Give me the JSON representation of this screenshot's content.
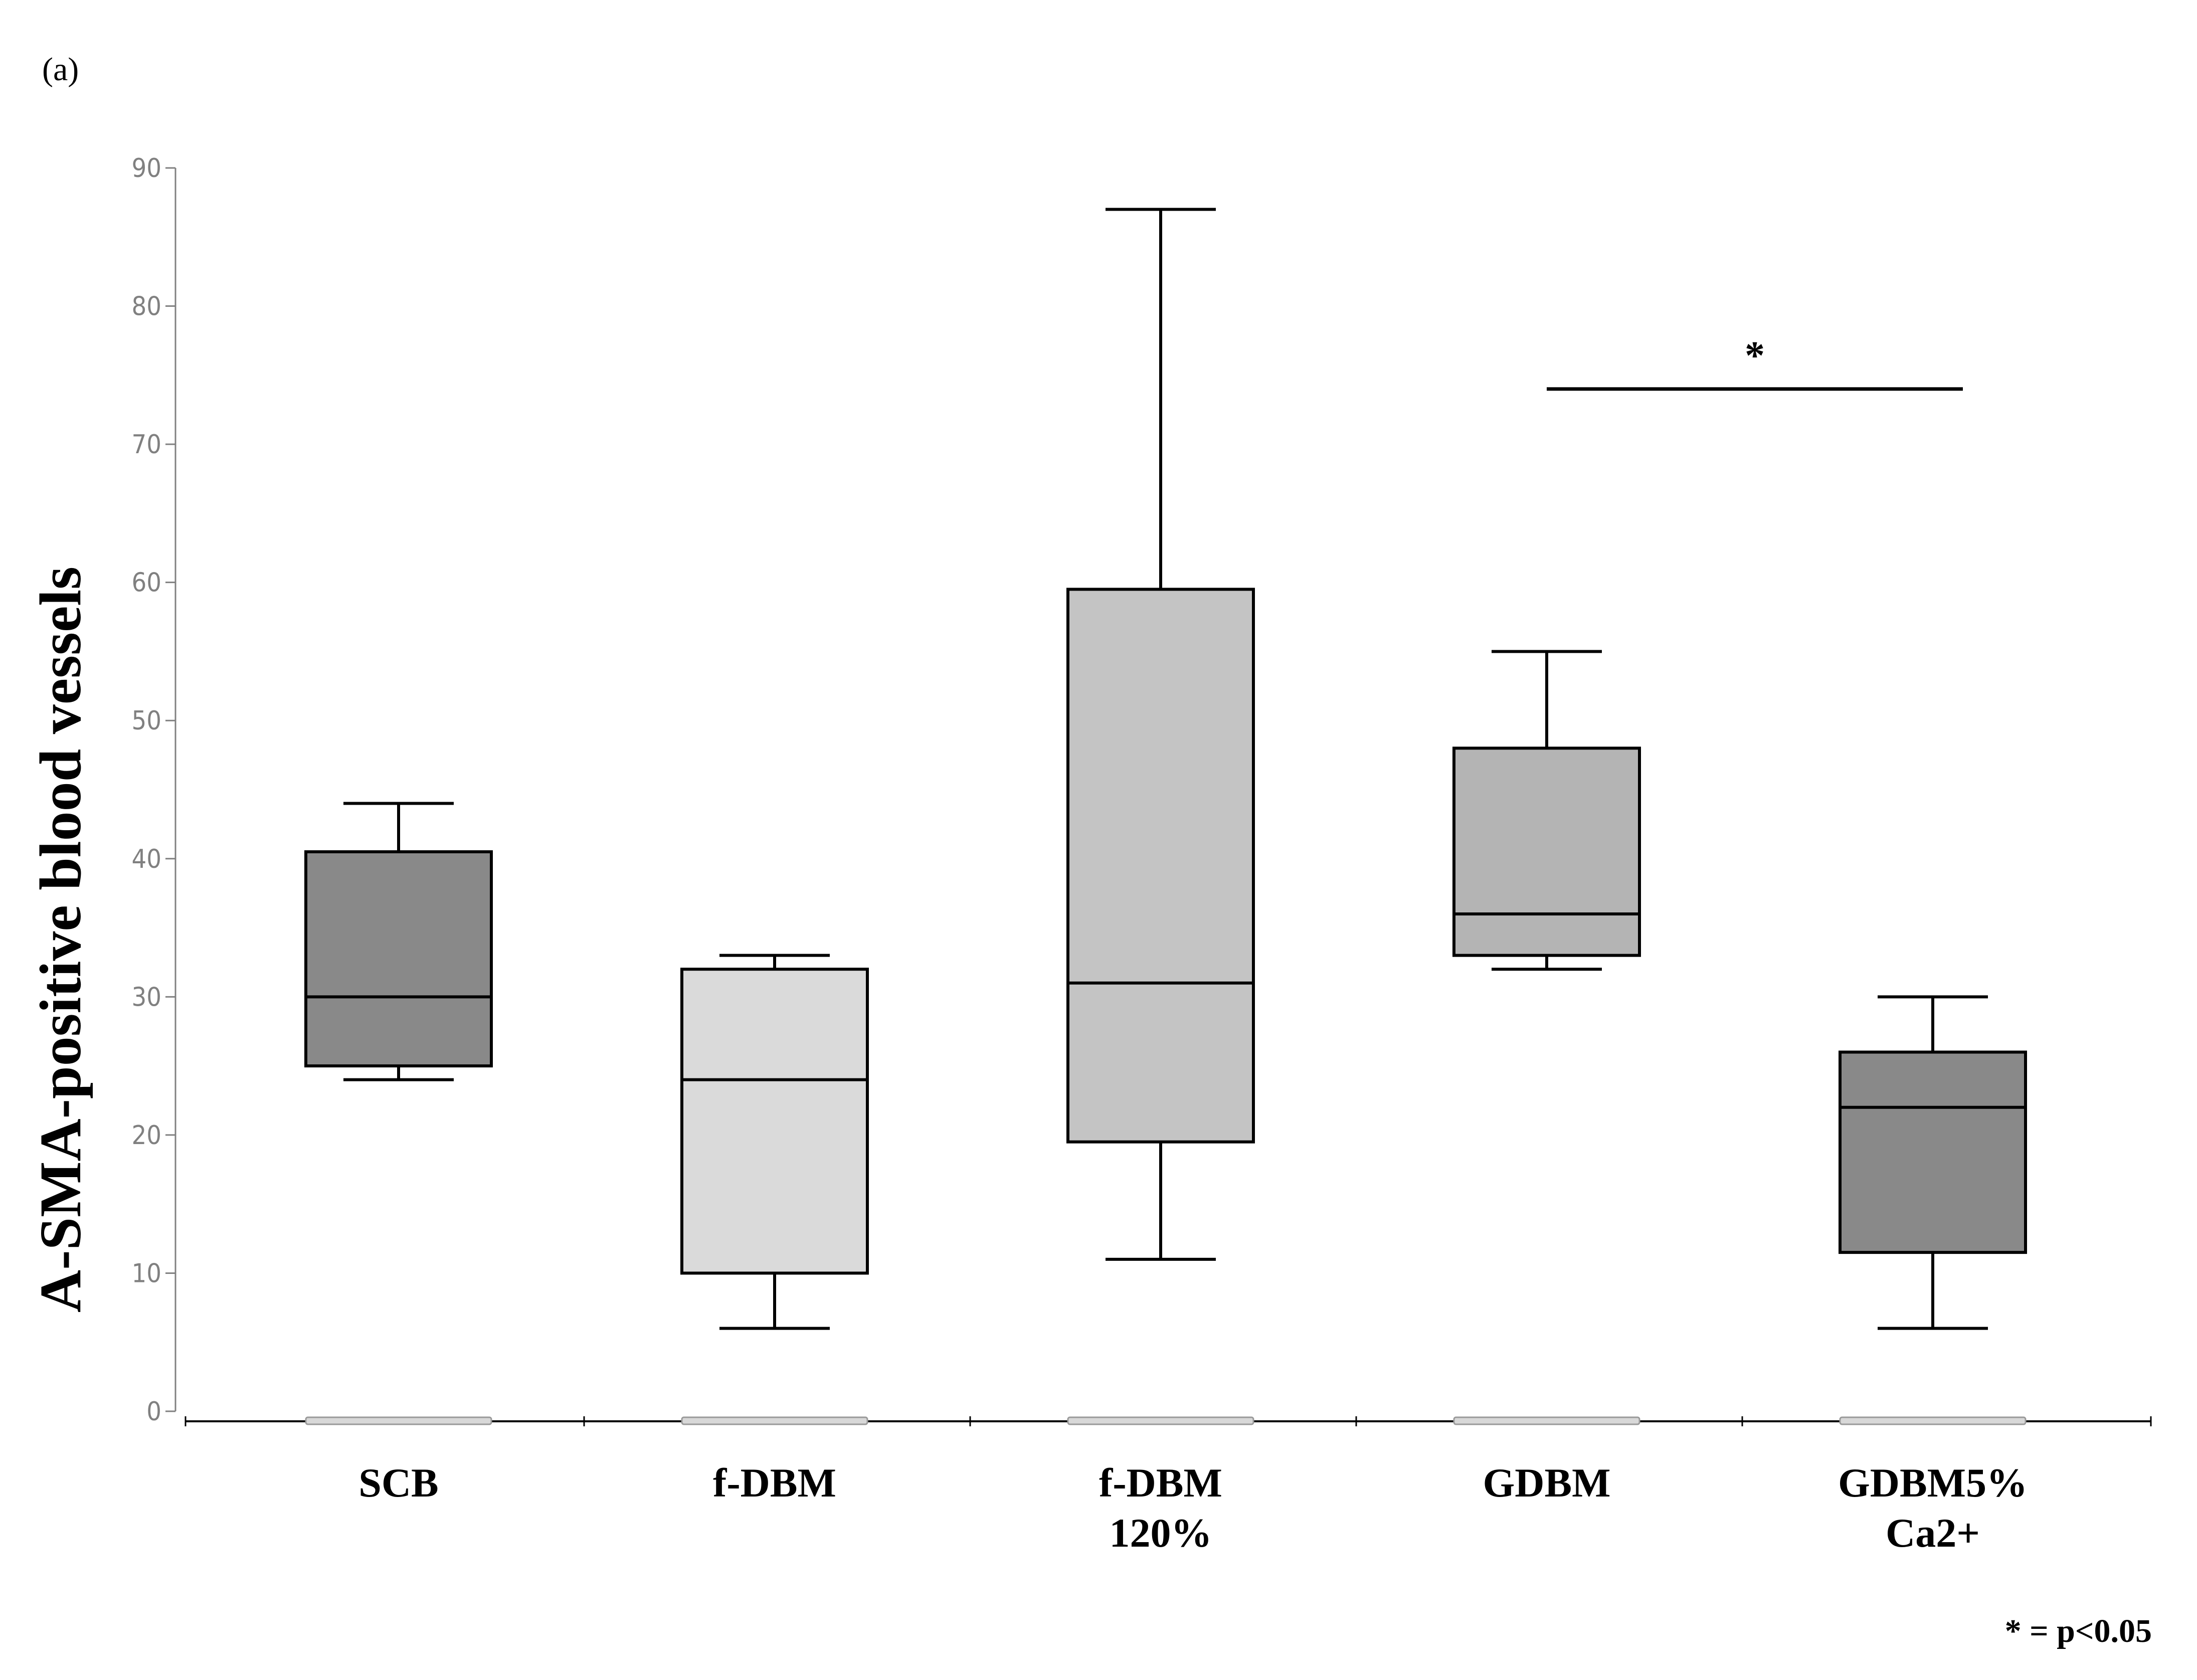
{
  "panel_label": "(a)",
  "significance": {
    "star": "*",
    "from_category": "GDBM",
    "to_category": "GDBM5% Ca2+",
    "level": 74
  },
  "note": "* = p<0.05",
  "chart_data": {
    "type": "boxplot",
    "title": "",
    "xlabel": "",
    "ylabel": "A-SMA-positive blood vessels",
    "ylim": [
      0,
      90
    ],
    "yticks": [
      0,
      10,
      20,
      30,
      40,
      50,
      60,
      70,
      80,
      90
    ],
    "grid": false,
    "categories": [
      {
        "label_lines": [
          "SCB"
        ],
        "min": 24,
        "q1": 25,
        "median": 30,
        "q3": 40.5,
        "max": 44,
        "fill": "#898989"
      },
      {
        "label_lines": [
          "f-DBM"
        ],
        "min": 6,
        "q1": 10,
        "median": 24,
        "q3": 32,
        "max": 33,
        "fill": "#dadada"
      },
      {
        "label_lines": [
          "f-DBM",
          "120%"
        ],
        "min": 11,
        "q1": 19.5,
        "median": 31,
        "q3": 59.5,
        "max": 87,
        "fill": "#c4c4c4"
      },
      {
        "label_lines": [
          "GDBM"
        ],
        "min": 32,
        "q1": 33,
        "median": 36,
        "q3": 48,
        "max": 55,
        "fill": "#b4b4b4"
      },
      {
        "label_lines": [
          "GDBM5%",
          "Ca2+"
        ],
        "min": 6,
        "q1": 11.5,
        "median": 22,
        "q3": 26,
        "max": 30,
        "fill": "#898989"
      }
    ]
  }
}
